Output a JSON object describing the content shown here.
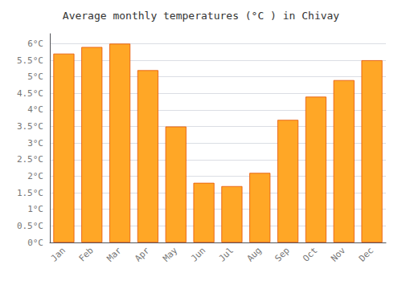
{
  "chart_data": {
    "type": "bar",
    "title": "Average monthly temperatures (°C ) in Chivay",
    "categories": [
      "Jan",
      "Feb",
      "Mar",
      "Apr",
      "May",
      "Jun",
      "Jul",
      "Aug",
      "Sep",
      "Oct",
      "Nov",
      "Dec"
    ],
    "values": [
      5.7,
      5.9,
      6.0,
      5.2,
      3.5,
      1.8,
      1.7,
      2.1,
      3.7,
      4.4,
      4.9,
      5.5
    ],
    "color": "#FFA726",
    "ylim": [
      0,
      6.3
    ],
    "yticks": [
      {
        "value": 0,
        "label": "0°C"
      },
      {
        "value": 0.5,
        "label": "0.5°C"
      },
      {
        "value": 1.0,
        "label": "1°C"
      },
      {
        "value": 1.5,
        "label": "1.5°C"
      },
      {
        "value": 2.0,
        "label": "2°C"
      },
      {
        "value": 2.5,
        "label": "2.5°C"
      },
      {
        "value": 3.0,
        "label": "3°C"
      },
      {
        "value": 3.5,
        "label": "3.5°C"
      },
      {
        "value": 4.0,
        "label": "4°C"
      },
      {
        "value": 4.5,
        "label": "4.5°C"
      },
      {
        "value": 5.0,
        "label": "5°C"
      },
      {
        "value": 5.5,
        "label": "5.5°C"
      },
      {
        "value": 6.0,
        "label": "6°C"
      }
    ],
    "grid": true
  }
}
